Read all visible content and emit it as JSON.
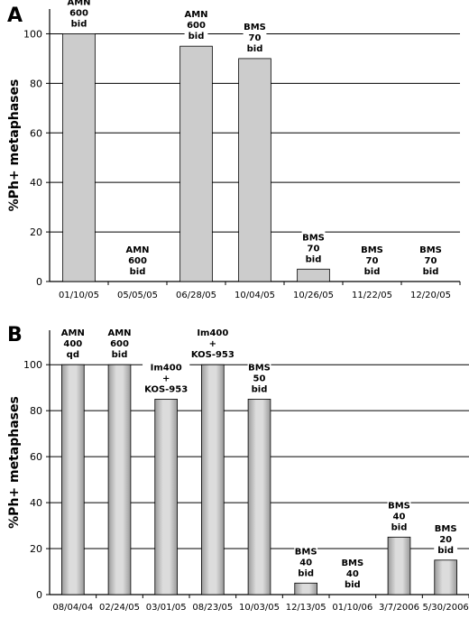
{
  "chart_data": [
    {
      "type": "bar",
      "panel_label": "A",
      "ylabel": "%Ph+ metaphases",
      "ylim": [
        0,
        110
      ],
      "yticks": [
        "0",
        "20",
        "40",
        "60",
        "80",
        "100"
      ],
      "grid": true,
      "categories": [
        "01/10/05",
        "05/05/05",
        "06/28/05",
        "10/04/05",
        "10/26/05",
        "11/22/05",
        "12/20/05"
      ],
      "values": [
        100,
        0,
        95,
        90,
        5,
        0,
        0
      ],
      "annotations": [
        [
          "AMN",
          "600",
          "bid"
        ],
        [
          "AMN",
          "600",
          "bid"
        ],
        [
          "AMN",
          "600",
          "bid"
        ],
        [
          "BMS",
          "70",
          "bid"
        ],
        [
          "BMS",
          "70",
          "bid"
        ],
        [
          "BMS",
          "70",
          "bid"
        ],
        [
          "BMS",
          "70",
          "bid"
        ]
      ]
    },
    {
      "type": "bar",
      "panel_label": "B",
      "ylabel": "%Ph+ metaphases",
      "ylim": [
        0,
        115
      ],
      "yticks": [
        "0",
        "20",
        "40",
        "60",
        "80",
        "100"
      ],
      "grid": true,
      "categories": [
        "08/04/04",
        "02/24/05",
        "03/01/05",
        "08/23/05",
        "10/03/05",
        "12/13/05",
        "01/10/06",
        "3/7/2006",
        "5/30/2006"
      ],
      "values": [
        100,
        100,
        85,
        100,
        85,
        5,
        0,
        25,
        15
      ],
      "annotations": [
        [
          "AMN",
          "400",
          "qd"
        ],
        [
          "AMN",
          "600",
          "bid"
        ],
        [
          "Im400",
          "+",
          "KOS-953"
        ],
        [
          "Im400",
          "+",
          "KOS-953"
        ],
        [
          "BMS",
          "50",
          "bid"
        ],
        [
          "BMS",
          "40",
          "bid"
        ],
        [
          "BMS",
          "40",
          "bid"
        ],
        [
          "BMS",
          "40",
          "bid"
        ],
        [
          "BMS",
          "20",
          "bid"
        ]
      ]
    }
  ]
}
